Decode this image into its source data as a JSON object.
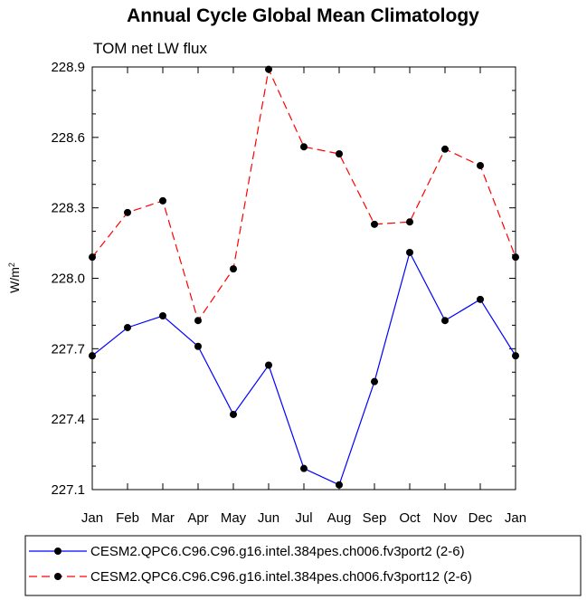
{
  "chart_data": {
    "type": "line",
    "title": "Annual Cycle Global Mean Climatology",
    "subtitle": "TOM net LW flux",
    "xlabel": "",
    "ylabel": "W/m",
    "ylabel_superscript": "2",
    "categories": [
      "Jan",
      "Feb",
      "Mar",
      "Apr",
      "May",
      "Jun",
      "Jul",
      "Aug",
      "Sep",
      "Oct",
      "Nov",
      "Dec",
      "Jan"
    ],
    "ylim": [
      227.1,
      228.9
    ],
    "yticks": [
      227.1,
      227.4,
      227.7,
      228.0,
      228.3,
      228.6,
      228.9
    ],
    "ytick_labels": [
      "227.1",
      "227.4",
      "227.7",
      "228.0",
      "228.3",
      "228.6",
      "228.9"
    ],
    "grid": false,
    "legend_position": "bottom",
    "series": [
      {
        "name": "CESM2.QPC6.C96.C96.g16.intel.384pes.ch006.fv3port2 (2-6)",
        "color": "#0000ff",
        "style": "solid",
        "values": [
          227.67,
          227.79,
          227.84,
          227.71,
          227.42,
          227.63,
          227.19,
          227.12,
          227.56,
          228.11,
          227.82,
          227.91,
          227.67
        ]
      },
      {
        "name": "CESM2.QPC6.C96.C96.g16.intel.384pes.ch006.fv3port12 (2-6)",
        "color": "#ff0000",
        "style": "dashed",
        "values": [
          228.09,
          228.28,
          228.33,
          227.82,
          228.04,
          228.89,
          228.56,
          228.53,
          228.23,
          228.24,
          228.55,
          228.48,
          228.09
        ]
      }
    ]
  }
}
